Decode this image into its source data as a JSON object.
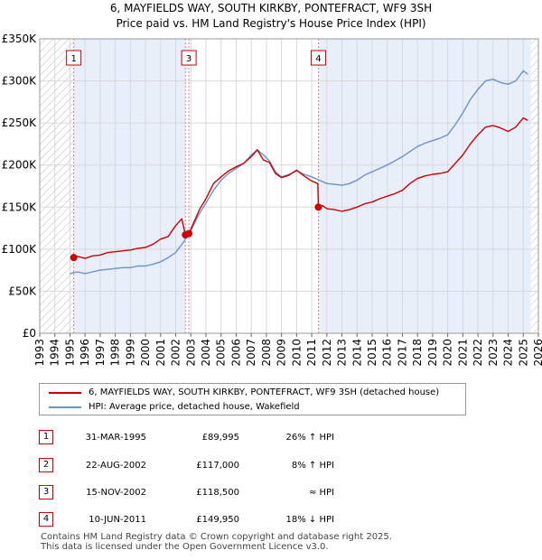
{
  "title_line1": "6, MAYFIELDS WAY, SOUTH KIRKBY, PONTEFRACT, WF9 3SH",
  "title_line2": "Price paid vs. HM Land Registry's House Price Index (HPI)",
  "colors": {
    "property": "#cc0000",
    "hpi": "#6a93c9",
    "shade": "#e8eefa",
    "grid": "#d8d8d8",
    "marker_line": "#e08080"
  },
  "chart_data": {
    "type": "line",
    "title": "Price paid vs. HM Land Registry's House Price Index (HPI)",
    "xlabel": "",
    "ylabel": "",
    "xlim": [
      1993,
      2026
    ],
    "ylim": [
      0,
      350000
    ],
    "x_ticks": [
      1993,
      1994,
      1995,
      1996,
      1997,
      1998,
      1999,
      2000,
      2001,
      2002,
      2003,
      2004,
      2005,
      2006,
      2007,
      2008,
      2009,
      2010,
      2011,
      2012,
      2013,
      2014,
      2015,
      2016,
      2017,
      2018,
      2019,
      2020,
      2021,
      2022,
      2023,
      2024,
      2025,
      2026
    ],
    "y_ticks": [
      {
        "value": 0,
        "label": "£0"
      },
      {
        "value": 50000,
        "label": "£50K"
      },
      {
        "value": 100000,
        "label": "£100K"
      },
      {
        "value": 150000,
        "label": "£150K"
      },
      {
        "value": 200000,
        "label": "£200K"
      },
      {
        "value": 250000,
        "label": "£250K"
      },
      {
        "value": 300000,
        "label": "£300K"
      },
      {
        "value": 350000,
        "label": "£350K"
      }
    ],
    "shaded_ranges": [
      [
        1995.25,
        2002.64
      ],
      [
        2011.44,
        2025.5
      ]
    ],
    "hatched_ranges": [
      [
        1993,
        1995.25
      ],
      [
        2025.5,
        2026
      ]
    ],
    "series": [
      {
        "name": "6, MAYFIELDS WAY, SOUTH KIRKBY, PONTEFRACT, WF9 3SH (detached house)",
        "color": "#cc0000",
        "points": [
          [
            1995.25,
            89995
          ],
          [
            1995.5,
            91500
          ],
          [
            1996,
            89000
          ],
          [
            1996.5,
            92000
          ],
          [
            1997,
            93000
          ],
          [
            1997.5,
            96000
          ],
          [
            1998,
            97000
          ],
          [
            1998.5,
            98000
          ],
          [
            1999,
            99000
          ],
          [
            1999.5,
            101000
          ],
          [
            2000,
            102000
          ],
          [
            2000.5,
            106000
          ],
          [
            2001,
            112000
          ],
          [
            2001.5,
            115000
          ],
          [
            2002,
            128000
          ],
          [
            2002.4,
            136000
          ],
          [
            2002.64,
            117000
          ],
          [
            2002.87,
            118500
          ],
          [
            2003.2,
            132000
          ],
          [
            2003.6,
            148000
          ],
          [
            2004,
            160000
          ],
          [
            2004.5,
            178000
          ],
          [
            2005,
            186000
          ],
          [
            2005.5,
            193000
          ],
          [
            2006,
            198000
          ],
          [
            2006.5,
            202000
          ],
          [
            2007,
            210000
          ],
          [
            2007.4,
            218000
          ],
          [
            2007.8,
            206000
          ],
          [
            2008.2,
            203000
          ],
          [
            2008.6,
            190000
          ],
          [
            2009,
            185000
          ],
          [
            2009.5,
            188000
          ],
          [
            2010,
            194000
          ],
          [
            2010.5,
            187000
          ],
          [
            2011,
            181000
          ],
          [
            2011.4,
            178000
          ],
          [
            2011.44,
            149950
          ],
          [
            2011.7,
            152000
          ],
          [
            2012,
            148000
          ],
          [
            2012.5,
            147000
          ],
          [
            2013,
            145000
          ],
          [
            2013.5,
            147000
          ],
          [
            2014,
            150000
          ],
          [
            2014.5,
            154000
          ],
          [
            2015,
            156000
          ],
          [
            2015.5,
            160000
          ],
          [
            2016,
            163000
          ],
          [
            2016.5,
            166000
          ],
          [
            2017,
            170000
          ],
          [
            2017.5,
            178000
          ],
          [
            2018,
            184000
          ],
          [
            2018.5,
            187000
          ],
          [
            2019,
            189000
          ],
          [
            2019.5,
            190000
          ],
          [
            2020,
            192000
          ],
          [
            2020.5,
            202000
          ],
          [
            2021,
            212000
          ],
          [
            2021.5,
            225000
          ],
          [
            2022,
            236000
          ],
          [
            2022.5,
            245000
          ],
          [
            2023,
            247000
          ],
          [
            2023.5,
            244000
          ],
          [
            2024,
            240000
          ],
          [
            2024.5,
            245000
          ],
          [
            2025,
            256000
          ],
          [
            2025.3,
            253000
          ]
        ]
      },
      {
        "name": "HPI: Average price, detached house, Wakefield",
        "color": "#6a93c9",
        "points": [
          [
            1995,
            71000
          ],
          [
            1995.5,
            73000
          ],
          [
            1996,
            71000
          ],
          [
            1996.5,
            73000
          ],
          [
            1997,
            75000
          ],
          [
            1997.5,
            76000
          ],
          [
            1998,
            77000
          ],
          [
            1998.5,
            78000
          ],
          [
            1999,
            78000
          ],
          [
            1999.5,
            80000
          ],
          [
            2000,
            80000
          ],
          [
            2000.5,
            82000
          ],
          [
            2001,
            85000
          ],
          [
            2001.5,
            90000
          ],
          [
            2002,
            96000
          ],
          [
            2002.5,
            108000
          ],
          [
            2003,
            122000
          ],
          [
            2003.5,
            140000
          ],
          [
            2004,
            155000
          ],
          [
            2004.5,
            170000
          ],
          [
            2005,
            182000
          ],
          [
            2005.5,
            190000
          ],
          [
            2006,
            196000
          ],
          [
            2006.5,
            202000
          ],
          [
            2007,
            212000
          ],
          [
            2007.4,
            218000
          ],
          [
            2007.8,
            212000
          ],
          [
            2008.2,
            205000
          ],
          [
            2008.6,
            192000
          ],
          [
            2009,
            186000
          ],
          [
            2009.5,
            189000
          ],
          [
            2010,
            193000
          ],
          [
            2010.5,
            189000
          ],
          [
            2011,
            186000
          ],
          [
            2011.5,
            182000
          ],
          [
            2012,
            178000
          ],
          [
            2012.5,
            177000
          ],
          [
            2013,
            176000
          ],
          [
            2013.5,
            178000
          ],
          [
            2014,
            182000
          ],
          [
            2014.5,
            188000
          ],
          [
            2015,
            192000
          ],
          [
            2015.5,
            196000
          ],
          [
            2016,
            200000
          ],
          [
            2016.5,
            205000
          ],
          [
            2017,
            210000
          ],
          [
            2017.5,
            216000
          ],
          [
            2018,
            222000
          ],
          [
            2018.5,
            226000
          ],
          [
            2019,
            229000
          ],
          [
            2019.5,
            232000
          ],
          [
            2020,
            236000
          ],
          [
            2020.5,
            248000
          ],
          [
            2021,
            262000
          ],
          [
            2021.5,
            278000
          ],
          [
            2022,
            290000
          ],
          [
            2022.5,
            300000
          ],
          [
            2023,
            302000
          ],
          [
            2023.5,
            298000
          ],
          [
            2024,
            296000
          ],
          [
            2024.5,
            300000
          ],
          [
            2025,
            312000
          ],
          [
            2025.3,
            308000
          ]
        ]
      }
    ],
    "markers": [
      {
        "label": "1",
        "x": 1995.25,
        "y": 89995
      },
      {
        "label": "3",
        "x": 2002.87,
        "y": 118500
      },
      {
        "label": "4",
        "x": 2011.44,
        "y": 149950
      }
    ],
    "dots": [
      {
        "x": 1995.25,
        "y": 89995
      },
      {
        "x": 2002.64,
        "y": 117000
      },
      {
        "x": 2002.87,
        "y": 118500
      },
      {
        "x": 2011.44,
        "y": 149950
      }
    ],
    "marker_lines": [
      1995.25,
      2002.64,
      2002.87,
      2011.44
    ]
  },
  "legend": {
    "property_label": "6, MAYFIELDS WAY, SOUTH KIRKBY, PONTEFRACT, WF9 3SH (detached house)",
    "hpi_label": "HPI: Average price, detached house, Wakefield"
  },
  "transactions": [
    {
      "num": "1",
      "date": "31-MAR-1995",
      "price": "£89,995",
      "hpi": "26% ↑ HPI"
    },
    {
      "num": "2",
      "date": "22-AUG-2002",
      "price": "£117,000",
      "hpi": "8% ↑ HPI"
    },
    {
      "num": "3",
      "date": "15-NOV-2002",
      "price": "£118,500",
      "hpi": "≈ HPI"
    },
    {
      "num": "4",
      "date": "10-JUN-2011",
      "price": "£149,950",
      "hpi": "18% ↓ HPI"
    }
  ],
  "footer": "Contains HM Land Registry data © Crown copyright and database right 2025.\nThis data is licensed under the Open Government Licence v3.0."
}
